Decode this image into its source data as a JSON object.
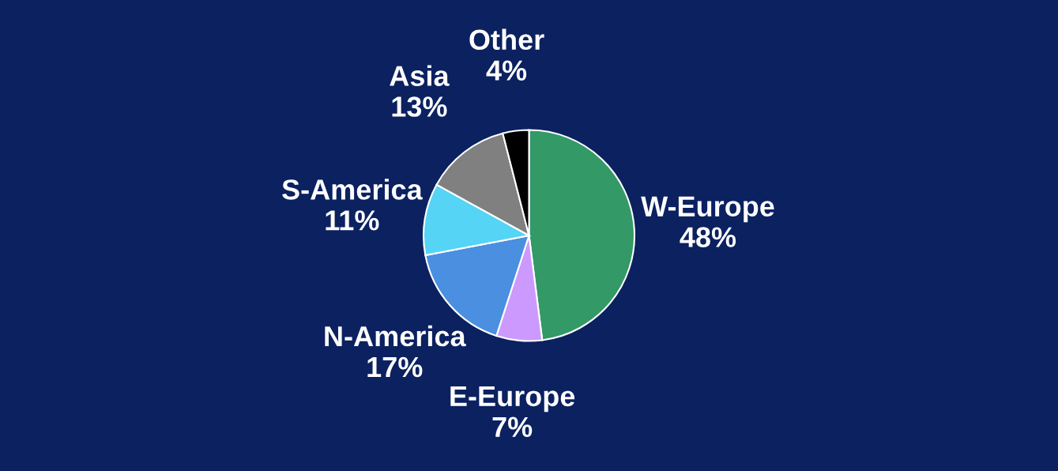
{
  "chart_data": {
    "type": "pie",
    "categories": [
      "W-Europe",
      "E-Europe",
      "N-America",
      "S-America",
      "Asia",
      "Other"
    ],
    "values": [
      48,
      7,
      17,
      11,
      13,
      4
    ],
    "value_labels": [
      "48%",
      "7%",
      "17%",
      "11%",
      "13%",
      "4%"
    ],
    "colors": [
      "#339966",
      "#cc99ff",
      "#4a8fe0",
      "#55d4f5",
      "#808080",
      "#000000"
    ]
  }
}
